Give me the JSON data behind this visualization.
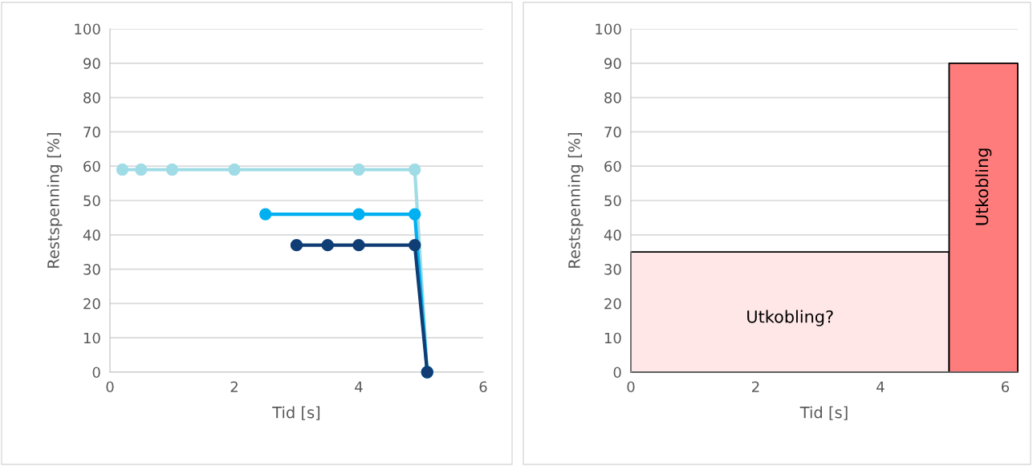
{
  "chart_data": [
    {
      "type": "line",
      "xlabel": "Tid [s]",
      "ylabel": "Restspenning [%]",
      "xlim": [
        0,
        6
      ],
      "xticks": [
        0,
        2,
        4,
        6
      ],
      "ylim": [
        0,
        100
      ],
      "yticks": [
        0,
        10,
        20,
        30,
        40,
        50,
        60,
        70,
        80,
        90,
        100
      ],
      "grid": "y",
      "marker": "circle",
      "line_style": "solid",
      "series": [
        {
          "color": "#a0dce6",
          "x": [
            0.2,
            0.5,
            1,
            2,
            4,
            4.9,
            5.1
          ],
          "values": [
            59,
            59,
            59,
            59,
            59,
            59,
            0
          ]
        },
        {
          "color": "#00b0f0",
          "x": [
            2.5,
            4,
            4.9,
            5.1
          ],
          "values": [
            46,
            46,
            46,
            0
          ]
        },
        {
          "color": "#0f3d74",
          "x": [
            3,
            3.5,
            4,
            4.9,
            5.1
          ],
          "values": [
            37,
            37,
            37,
            37,
            0
          ]
        }
      ]
    },
    {
      "type": "area",
      "xlabel": "Tid [s]",
      "ylabel": "Restspenning [%]",
      "xlim": [
        0,
        6.2
      ],
      "xticks": [
        0,
        2,
        4,
        6
      ],
      "ylim": [
        0,
        100
      ],
      "yticks": [
        0,
        10,
        20,
        30,
        40,
        50,
        60,
        70,
        80,
        90,
        100
      ],
      "grid": "y",
      "series": [
        {
          "name": "Utkobling?",
          "color": "#ffe7e7",
          "x": [
            0,
            5.1
          ],
          "values": [
            35,
            35
          ]
        },
        {
          "name": "Utkobling",
          "color": "#ff7c7c",
          "x": [
            5.1,
            6.2
          ],
          "values": [
            90,
            90
          ]
        }
      ]
    }
  ]
}
